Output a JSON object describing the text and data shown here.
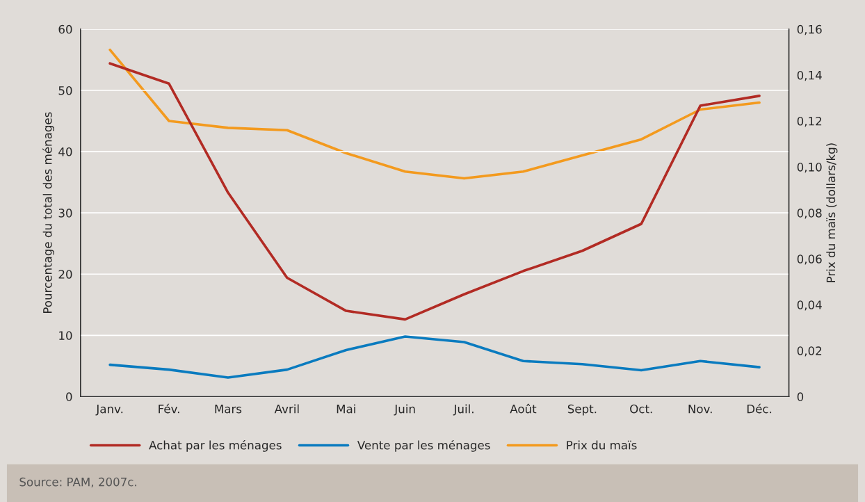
{
  "chart_data": {
    "type": "line",
    "categories": [
      "Janv.",
      "Fév.",
      "Mars",
      "Avril",
      "Mai",
      "Juin",
      "Juil.",
      "Août",
      "Sept.",
      "Oct.",
      "Nov.",
      "Déc."
    ],
    "series": [
      {
        "name": "Achat par les ménages",
        "color": "#b22b24",
        "values": [
          54.4,
          51.1,
          33.3,
          19.4,
          14.0,
          12.6,
          16.7,
          20.5,
          23.8,
          28.2,
          47.5,
          49.1
        ]
      },
      {
        "name": "Vente par les ménages",
        "color": "#0a7bbf",
        "values": [
          5.2,
          4.4,
          3.1,
          4.4,
          7.6,
          9.8,
          8.9,
          5.8,
          5.3,
          4.3,
          5.8,
          4.8
        ]
      },
      {
        "name": "Prix du maïs",
        "color": "#f39a1e",
        "axis": "y2",
        "values": [
          0.151,
          0.12,
          0.117,
          0.116,
          0.106,
          0.098,
          0.095,
          0.098,
          0.105,
          0.112,
          0.125,
          0.128
        ]
      }
    ],
    "ylabel": "Pourcentage du total des ménages",
    "y2label": "Prix du maïs (dollars/kg)",
    "ylim": [
      0,
      60
    ],
    "yticks": [
      0,
      10,
      20,
      30,
      40,
      50,
      60
    ],
    "y2lim": [
      0,
      0.16
    ],
    "y2ticks": [
      {
        "value": 0,
        "label": "0"
      },
      {
        "value": 0.02,
        "label": "0,02"
      },
      {
        "value": 0.04,
        "label": "0,04"
      },
      {
        "value": 0.06,
        "label": "0,06"
      },
      {
        "value": 0.08,
        "label": "0,08"
      },
      {
        "value": 0.1,
        "label": "0,10"
      },
      {
        "value": 0.12,
        "label": "0,12"
      },
      {
        "value": 0.14,
        "label": "0,14"
      },
      {
        "value": 0.16,
        "label": "0,16"
      }
    ],
    "grid": "y",
    "legend": "bottom",
    "marker": "none",
    "line_style": "solid",
    "annotations": [
      "Source: PAM, 2007c."
    ]
  }
}
